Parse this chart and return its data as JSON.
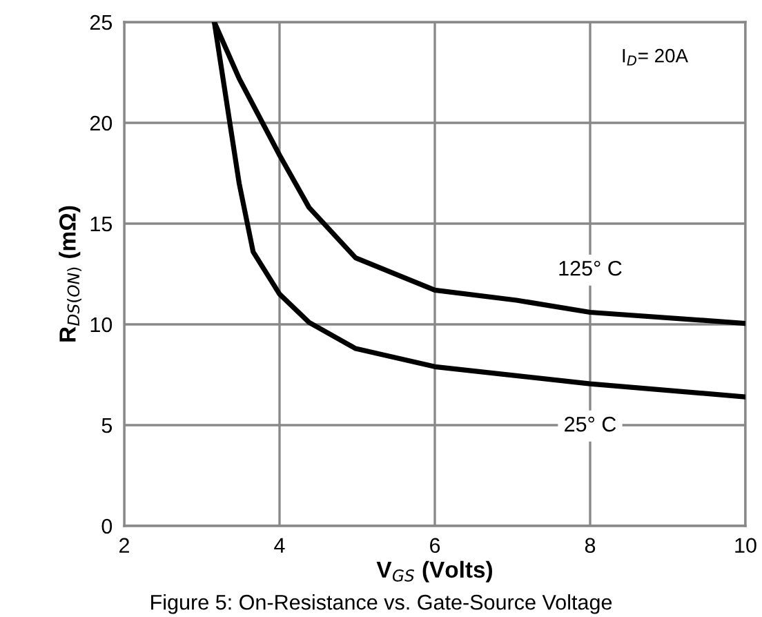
{
  "chart_data": {
    "type": "line",
    "xlabel": "V$_{GS}$ (Volts)",
    "ylabel": "R$_{DS(ON)}$ (mΩ)",
    "xlim": [
      2,
      10
    ],
    "xticks": [
      2,
      4,
      6,
      8,
      10
    ],
    "ylim": [
      0,
      25
    ],
    "yticks": [
      0,
      5,
      10,
      15,
      20,
      25
    ],
    "grid": true,
    "legend": false,
    "marker": "none",
    "line_style": "solid",
    "series": [
      {
        "name": "125° C",
        "color": "#000000",
        "x": [
          3.16,
          3.48,
          4.0,
          4.38,
          4.98,
          6.0,
          7.05,
          8.0,
          10.0
        ],
        "values": [
          25,
          22.2,
          18.4,
          15.8,
          13.3,
          11.7,
          11.2,
          10.6,
          10.05
        ]
      },
      {
        "name": "25° C",
        "color": "#000000",
        "x": [
          3.16,
          3.48,
          3.66,
          4.0,
          4.38,
          4.98,
          6.0,
          7.05,
          8.0,
          10.0
        ],
        "values": [
          25,
          17.0,
          13.6,
          11.5,
          10.1,
          8.8,
          7.9,
          7.45,
          7.05,
          6.4
        ]
      }
    ],
    "annotations": [
      "I$_{D}$= 20A",
      "Figure 5: On-Resistance vs. Gate-Source Voltage"
    ]
  }
}
